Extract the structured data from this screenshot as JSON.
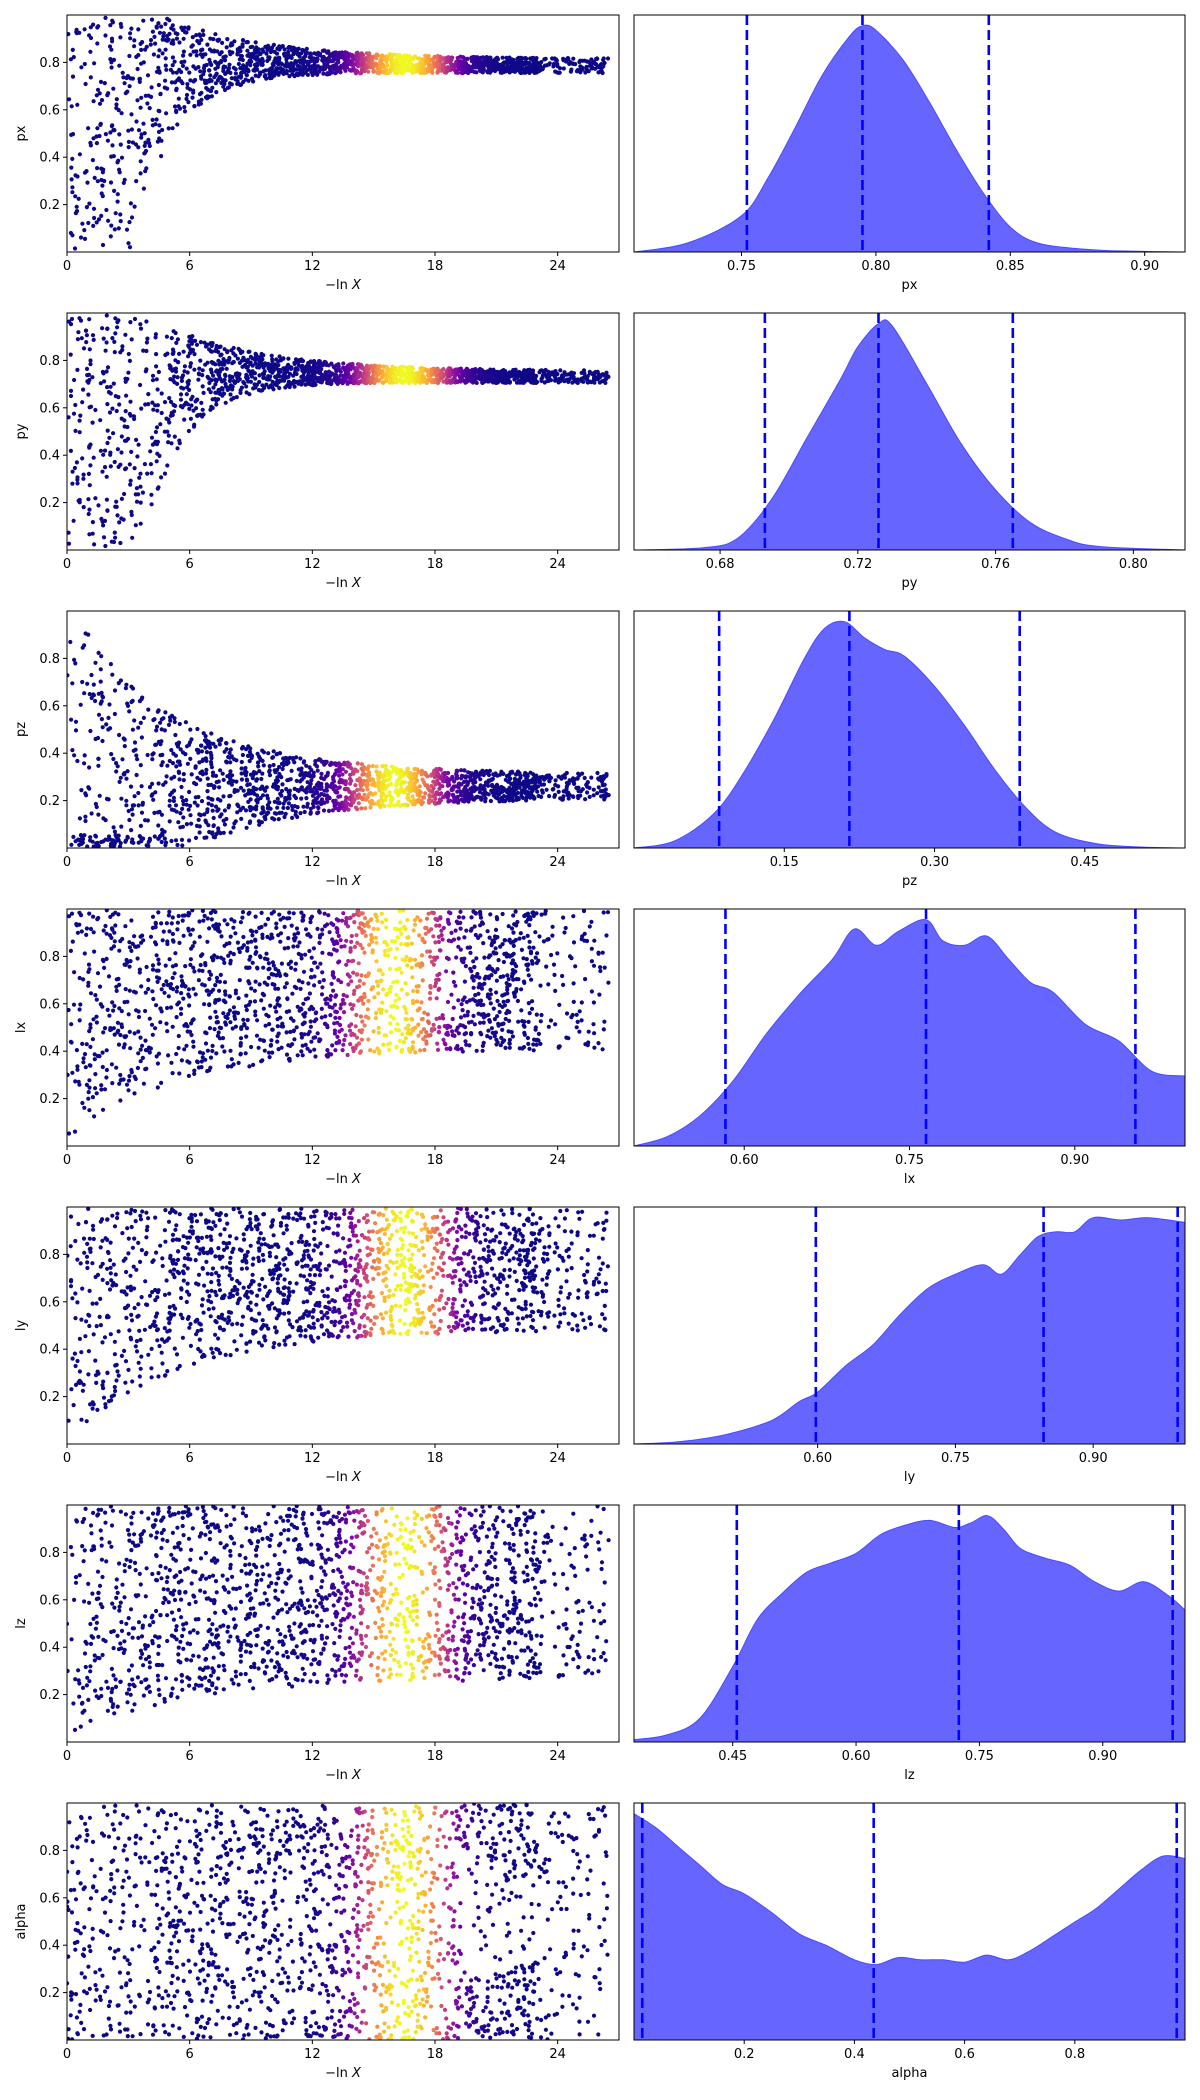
{
  "figure": {
    "type": "dynesty trace plot",
    "trace_xlabel_prefix": "−ln",
    "trace_xlabel_var": "X",
    "point_colormap": [
      "#0d0887",
      "#2d0594",
      "#6a00a8",
      "#b12a90",
      "#e16462",
      "#fca636",
      "#f0f921"
    ],
    "posterior_fill_color": "#6666ff",
    "quantile_line_color": "#0000ff"
  },
  "chart_data": [
    {
      "param": "px",
      "type": "scatter",
      "xlabel": "−ln X",
      "ylabel": "px",
      "xlim": [
        0,
        27
      ],
      "xticks": [
        0,
        6,
        12,
        18,
        24
      ],
      "ylim": [
        0,
        1
      ],
      "yticks": [
        0.2,
        0.4,
        0.6,
        0.8
      ],
      "trace": {
        "onset": 3.0,
        "center": 0.785,
        "final_halfwidth": 0.03,
        "decay": 5.0,
        "envelope": "fan",
        "peak_lnx": 16.5
      },
      "posterior": {
        "type": "area",
        "xlabel": "px",
        "xlim": [
          0.71,
          0.915
        ],
        "xticks": [
          0.75,
          0.8,
          0.85,
          0.9
        ],
        "quantiles": [
          0.752,
          0.795,
          0.842
        ],
        "x": [
          0.71,
          0.73,
          0.75,
          0.76,
          0.77,
          0.78,
          0.79,
          0.795,
          0.8,
          0.81,
          0.82,
          0.83,
          0.84,
          0.85,
          0.86,
          0.875,
          0.89,
          0.915
        ],
        "density": [
          0.0,
          0.04,
          0.16,
          0.33,
          0.55,
          0.78,
          0.95,
          1.0,
          0.98,
          0.85,
          0.66,
          0.45,
          0.26,
          0.11,
          0.04,
          0.015,
          0.005,
          0.0
        ]
      }
    },
    {
      "param": "py",
      "type": "scatter",
      "xlabel": "−ln X",
      "ylabel": "py",
      "xlim": [
        0,
        27
      ],
      "xticks": [
        0,
        6,
        12,
        18,
        24
      ],
      "ylim": [
        0,
        1
      ],
      "yticks": [
        0.2,
        0.4,
        0.6,
        0.8
      ],
      "trace": {
        "onset": 3.5,
        "center": 0.73,
        "final_halfwidth": 0.025,
        "decay": 5.0,
        "envelope": "fan",
        "peak_lnx": 16.5
      },
      "posterior": {
        "type": "area",
        "xlabel": "py",
        "xlim": [
          0.655,
          0.815
        ],
        "xticks": [
          0.68,
          0.72,
          0.76,
          0.8
        ],
        "quantiles": [
          0.693,
          0.726,
          0.765
        ],
        "x": [
          0.655,
          0.675,
          0.685,
          0.695,
          0.705,
          0.715,
          0.72,
          0.726,
          0.73,
          0.74,
          0.75,
          0.76,
          0.77,
          0.78,
          0.79,
          0.815
        ],
        "density": [
          0.0,
          0.01,
          0.05,
          0.22,
          0.48,
          0.74,
          0.88,
          0.98,
          0.97,
          0.72,
          0.46,
          0.26,
          0.12,
          0.05,
          0.015,
          0.0
        ]
      }
    },
    {
      "param": "pz",
      "type": "scatter",
      "xlabel": "−ln X",
      "ylabel": "pz",
      "xlim": [
        0,
        27
      ],
      "xticks": [
        0,
        6,
        12,
        18,
        24
      ],
      "ylim": [
        0,
        1
      ],
      "yticks": [
        0.2,
        0.4,
        0.6,
        0.8
      ],
      "trace": {
        "onset": 0,
        "center": 0.26,
        "final_halfwidth": 0.05,
        "decay": 6.0,
        "envelope": "shrink",
        "peak_lnx": 16.0
      },
      "posterior": {
        "type": "area",
        "xlabel": "pz",
        "xlim": [
          0.0,
          0.55
        ],
        "xticks": [
          0.15,
          0.3,
          0.45
        ],
        "quantiles": [
          0.085,
          0.215,
          0.385
        ],
        "x": [
          0.0,
          0.04,
          0.08,
          0.11,
          0.14,
          0.17,
          0.19,
          0.21,
          0.23,
          0.25,
          0.27,
          0.3,
          0.33,
          0.36,
          0.39,
          0.42,
          0.46,
          0.5,
          0.55
        ],
        "density": [
          0.0,
          0.03,
          0.15,
          0.33,
          0.56,
          0.82,
          0.95,
          0.98,
          0.91,
          0.86,
          0.83,
          0.7,
          0.53,
          0.34,
          0.18,
          0.07,
          0.02,
          0.005,
          0.0
        ]
      }
    },
    {
      "param": "lx",
      "type": "scatter",
      "xlabel": "−ln X",
      "ylabel": "lx",
      "xlim": [
        0,
        27
      ],
      "xticks": [
        0,
        6,
        12,
        18,
        24
      ],
      "ylim": [
        0,
        1
      ],
      "yticks": [
        0.2,
        0.4,
        0.6,
        0.8
      ],
      "trace": {
        "onset": 0,
        "center": 0.78,
        "final_halfwidth": 0.2,
        "decay": 7.0,
        "envelope": "rising",
        "peak_lnx": 16.0
      },
      "posterior": {
        "type": "area",
        "xlabel": "lx",
        "xlim": [
          0.5,
          1.0
        ],
        "xticks": [
          0.6,
          0.75,
          0.9
        ],
        "quantiles": [
          0.583,
          0.765,
          0.955
        ],
        "x": [
          0.5,
          0.53,
          0.56,
          0.59,
          0.62,
          0.65,
          0.68,
          0.7,
          0.72,
          0.74,
          0.765,
          0.78,
          0.8,
          0.82,
          0.84,
          0.86,
          0.88,
          0.91,
          0.94,
          0.97,
          1.0
        ],
        "density": [
          0.0,
          0.04,
          0.13,
          0.28,
          0.48,
          0.65,
          0.8,
          0.93,
          0.86,
          0.92,
          0.97,
          0.88,
          0.86,
          0.9,
          0.8,
          0.7,
          0.66,
          0.52,
          0.45,
          0.32,
          0.3
        ]
      }
    },
    {
      "param": "ly",
      "type": "scatter",
      "xlabel": "−ln X",
      "ylabel": "ly",
      "xlim": [
        0,
        27
      ],
      "xticks": [
        0,
        6,
        12,
        18,
        24
      ],
      "ylim": [
        0,
        1
      ],
      "yticks": [
        0.2,
        0.4,
        0.6,
        0.8
      ],
      "trace": {
        "onset": 0,
        "center": 0.84,
        "final_halfwidth": 0.16,
        "decay": 7.0,
        "envelope": "rising",
        "peak_lnx": 16.5
      },
      "posterior": {
        "type": "area",
        "xlabel": "ly",
        "xlim": [
          0.4,
          1.0
        ],
        "xticks": [
          0.6,
          0.75,
          0.9
        ],
        "quantiles": [
          0.598,
          0.846,
          0.992
        ],
        "x": [
          0.4,
          0.45,
          0.5,
          0.55,
          0.58,
          0.6,
          0.63,
          0.66,
          0.69,
          0.72,
          0.75,
          0.78,
          0.8,
          0.82,
          0.84,
          0.86,
          0.88,
          0.9,
          0.93,
          0.96,
          1.0
        ],
        "density": [
          0.0,
          0.01,
          0.04,
          0.1,
          0.18,
          0.22,
          0.33,
          0.42,
          0.55,
          0.66,
          0.72,
          0.76,
          0.72,
          0.8,
          0.88,
          0.9,
          0.9,
          0.96,
          0.95,
          0.96,
          0.94
        ]
      }
    },
    {
      "param": "lz",
      "type": "scatter",
      "xlabel": "−ln X",
      "ylabel": "lz",
      "xlim": [
        0,
        27
      ],
      "xticks": [
        0,
        6,
        12,
        18,
        24
      ],
      "ylim": [
        0,
        1
      ],
      "yticks": [
        0.2,
        0.4,
        0.6,
        0.8
      ],
      "trace": {
        "onset": 0,
        "center": 0.7,
        "final_halfwidth": 0.28,
        "decay": 7.0,
        "envelope": "rising",
        "peak_lnx": 16.5
      },
      "posterior": {
        "type": "area",
        "xlabel": "lz",
        "xlim": [
          0.33,
          1.0
        ],
        "xticks": [
          0.45,
          0.6,
          0.75,
          0.9
        ],
        "quantiles": [
          0.455,
          0.725,
          0.985
        ],
        "x": [
          0.33,
          0.37,
          0.41,
          0.45,
          0.48,
          0.51,
          0.54,
          0.57,
          0.6,
          0.63,
          0.66,
          0.69,
          0.72,
          0.74,
          0.76,
          0.78,
          0.8,
          0.83,
          0.86,
          0.89,
          0.92,
          0.95,
          0.98,
          1.0
        ],
        "density": [
          0.01,
          0.03,
          0.1,
          0.32,
          0.52,
          0.63,
          0.72,
          0.76,
          0.8,
          0.88,
          0.92,
          0.94,
          0.91,
          0.93,
          0.96,
          0.9,
          0.82,
          0.78,
          0.75,
          0.68,
          0.64,
          0.68,
          0.62,
          0.56
        ]
      }
    },
    {
      "param": "alpha",
      "type": "scatter",
      "xlabel": "−ln X",
      "ylabel": "alpha",
      "xlim": [
        0,
        27
      ],
      "xticks": [
        0,
        6,
        12,
        18,
        24
      ],
      "ylim": [
        0,
        1
      ],
      "yticks": [
        0.2,
        0.4,
        0.6,
        0.8
      ],
      "trace": {
        "onset": 0,
        "center": 0.5,
        "final_halfwidth": 0.5,
        "decay": 7.0,
        "envelope": "bimodal",
        "peak_lnx": 16.5
      },
      "posterior": {
        "type": "area",
        "xlabel": "alpha",
        "xlim": [
          0.0,
          1.0
        ],
        "xticks": [
          0.2,
          0.4,
          0.6,
          0.8
        ],
        "quantiles": [
          0.015,
          0.435,
          0.985
        ],
        "x": [
          0.0,
          0.04,
          0.08,
          0.12,
          0.16,
          0.2,
          0.25,
          0.3,
          0.35,
          0.4,
          0.44,
          0.48,
          0.52,
          0.56,
          0.6,
          0.64,
          0.68,
          0.72,
          0.76,
          0.8,
          0.84,
          0.88,
          0.92,
          0.96,
          1.0
        ],
        "density": [
          0.96,
          0.9,
          0.82,
          0.74,
          0.66,
          0.62,
          0.54,
          0.45,
          0.4,
          0.34,
          0.32,
          0.35,
          0.34,
          0.34,
          0.33,
          0.36,
          0.34,
          0.38,
          0.44,
          0.5,
          0.56,
          0.64,
          0.72,
          0.78,
          0.77
        ]
      }
    }
  ]
}
